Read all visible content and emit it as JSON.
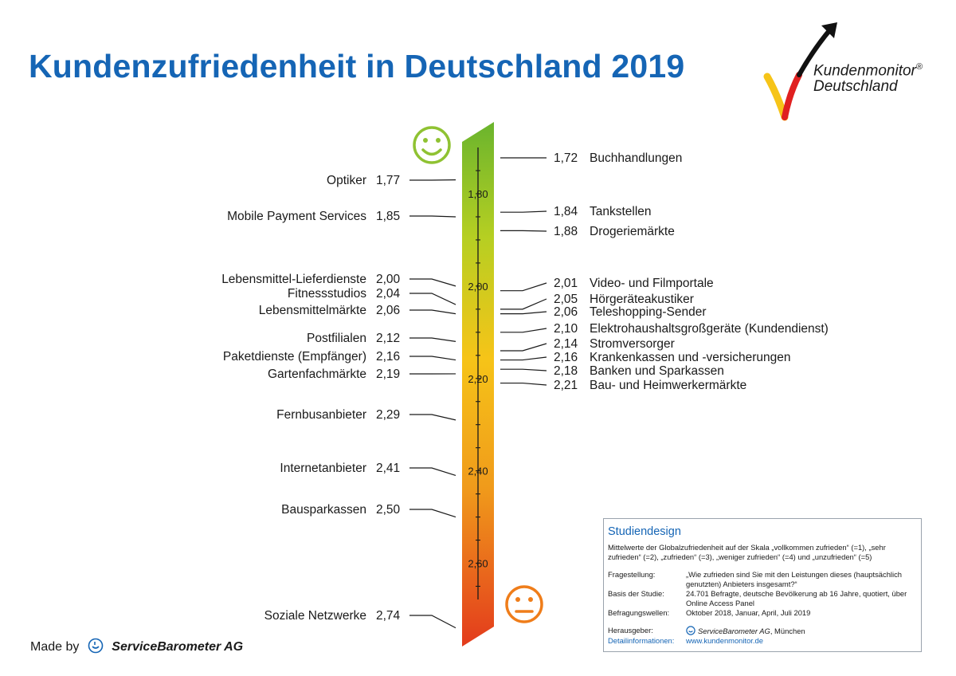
{
  "title": "Kundenzufriedenheit in Deutschland 2019",
  "logo": {
    "line1": "Kundenmonitor",
    "line2": "Deutschland",
    "registered": "®"
  },
  "made_by": {
    "prefix": "Made by",
    "company": "ServiceBarometer AG"
  },
  "icons": {
    "smiley_happy": "happy-face-icon",
    "smiley_neutral": "neutral-face-icon",
    "logo_arrow": "check-arrow-icon",
    "servicebarometer": "servicebarometer-logo-icon"
  },
  "colors": {
    "title": "#1565b5",
    "scale_top": "#6ab42d",
    "scale_mid": "#f6c418",
    "scale_bottom": "#e33b1c",
    "smiley_happy": "#8fc232",
    "smiley_neutral": "#ef7d1a"
  },
  "chart_data": {
    "type": "scale",
    "title": "Kundenzufriedenheit in Deutschland 2019",
    "scale_ticks": [
      "1,80",
      "2,00",
      "2,20",
      "2,40",
      "2,60"
    ],
    "tick_values": [
      1.8,
      2.0,
      2.2,
      2.4,
      2.6
    ],
    "range": [
      1.7,
      2.75
    ],
    "left": [
      {
        "label": "Optiker",
        "value": 1.77,
        "value_text": "1,77"
      },
      {
        "label": "Mobile Payment Services",
        "value": 1.85,
        "value_text": "1,85"
      },
      {
        "label": "Lebensmittel-Lieferdienste",
        "value": 2.0,
        "value_text": "2,00"
      },
      {
        "label": "Fitnessstudios",
        "value": 2.04,
        "value_text": "2,04"
      },
      {
        "label": "Lebensmittelmärkte",
        "value": 2.06,
        "value_text": "2,06"
      },
      {
        "label": "Postfilialen",
        "value": 2.12,
        "value_text": "2,12"
      },
      {
        "label": "Paketdienste (Empfänger)",
        "value": 2.16,
        "value_text": "2,16"
      },
      {
        "label": "Gartenfachmärkte",
        "value": 2.19,
        "value_text": "2,19"
      },
      {
        "label": "Fernbusanbieter",
        "value": 2.29,
        "value_text": "2,29"
      },
      {
        "label": "Internetanbieter",
        "value": 2.41,
        "value_text": "2,41"
      },
      {
        "label": "Bausparkassen",
        "value": 2.5,
        "value_text": "2,50"
      },
      {
        "label": "Soziale Netzwerke",
        "value": 2.74,
        "value_text": "2,74"
      }
    ],
    "right": [
      {
        "label": "Buchhandlungen",
        "value": 1.72,
        "value_text": "1,72"
      },
      {
        "label": "Tankstellen",
        "value": 1.84,
        "value_text": "1,84"
      },
      {
        "label": "Drogeriemärkte",
        "value": 1.88,
        "value_text": "1,88"
      },
      {
        "label": "Video- und Filmportale",
        "value": 2.01,
        "value_text": "2,01"
      },
      {
        "label": "Hörgeräteakustiker",
        "value": 2.05,
        "value_text": "2,05"
      },
      {
        "label": "Teleshopping-Sender",
        "value": 2.06,
        "value_text": "2,06"
      },
      {
        "label": "Elektrohaushaltsgroßgeräte (Kundendienst)",
        "value": 2.1,
        "value_text": "2,10"
      },
      {
        "label": "Stromversorger",
        "value": 2.14,
        "value_text": "2,14"
      },
      {
        "label": "Krankenkassen und -versicherungen",
        "value": 2.16,
        "value_text": "2,16"
      },
      {
        "label": "Banken und Sparkassen",
        "value": 2.18,
        "value_text": "2,18"
      },
      {
        "label": "Bau- und Heimwerkermärkte",
        "value": 2.21,
        "value_text": "2,21"
      }
    ]
  },
  "study": {
    "title": "Studiendesign",
    "intro": "Mittelwerte der Globalzufriedenheit auf der Skala „vollkommen zufrieden“ (=1), „sehr zufrieden“ (=2), „zufrieden“ (=3), „weniger zufrieden“ (=4) und „unzufrieden“ (=5)",
    "question_label": "Fragestellung:",
    "question": "„Wie zufrieden sind Sie mit den Leistungen dieses (hauptsächlich genutzten) Anbieters insgesamt?“",
    "basis_label": "Basis der Studie:",
    "basis": "24.701 Befragte, deutsche Bevölkerung ab 16 Jahre, quotiert, über Online Access Panel",
    "waves_label": "Befragungswellen:",
    "waves": "Oktober 2018, Januar, April, Juli 2019",
    "publisher_label": "Herausgeber:",
    "publisher_name": "ServiceBarometer AG",
    "publisher_city": ", München",
    "details_label": "Detailinformationen:",
    "details": "www.kundenmonitor.de"
  }
}
